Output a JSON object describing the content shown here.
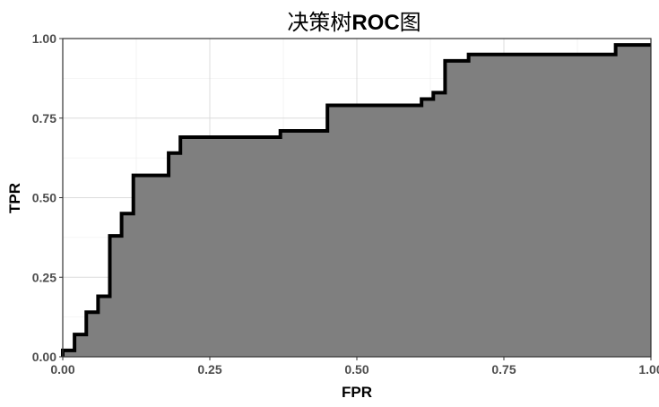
{
  "chart_data": {
    "type": "area",
    "title_cjk_prefix": "决策树",
    "title_bold": "ROC",
    "title_cjk_suffix": "图",
    "xlabel": "FPR",
    "ylabel": "TPR",
    "xlim": [
      0,
      1
    ],
    "ylim": [
      0,
      1
    ],
    "x_ticks": [
      "0.00",
      "0.25",
      "0.50",
      "0.75",
      "1.00"
    ],
    "y_ticks": [
      "0.00",
      "0.25",
      "0.50",
      "0.75",
      "1.00"
    ],
    "grid": true,
    "fill_color": "#7f7f7f",
    "line_color": "#000000",
    "points": [
      [
        0.0,
        0.0
      ],
      [
        0.0,
        0.02
      ],
      [
        0.02,
        0.02
      ],
      [
        0.02,
        0.07
      ],
      [
        0.04,
        0.07
      ],
      [
        0.04,
        0.14
      ],
      [
        0.06,
        0.14
      ],
      [
        0.06,
        0.19
      ],
      [
        0.08,
        0.19
      ],
      [
        0.08,
        0.38
      ],
      [
        0.1,
        0.38
      ],
      [
        0.1,
        0.45
      ],
      [
        0.12,
        0.45
      ],
      [
        0.12,
        0.57
      ],
      [
        0.18,
        0.57
      ],
      [
        0.18,
        0.64
      ],
      [
        0.2,
        0.64
      ],
      [
        0.2,
        0.69
      ],
      [
        0.37,
        0.69
      ],
      [
        0.37,
        0.71
      ],
      [
        0.45,
        0.71
      ],
      [
        0.45,
        0.79
      ],
      [
        0.61,
        0.79
      ],
      [
        0.61,
        0.81
      ],
      [
        0.63,
        0.81
      ],
      [
        0.63,
        0.83
      ],
      [
        0.65,
        0.83
      ],
      [
        0.65,
        0.93
      ],
      [
        0.69,
        0.93
      ],
      [
        0.69,
        0.95
      ],
      [
        0.94,
        0.95
      ],
      [
        0.94,
        0.98
      ],
      [
        1.0,
        0.98
      ]
    ]
  }
}
